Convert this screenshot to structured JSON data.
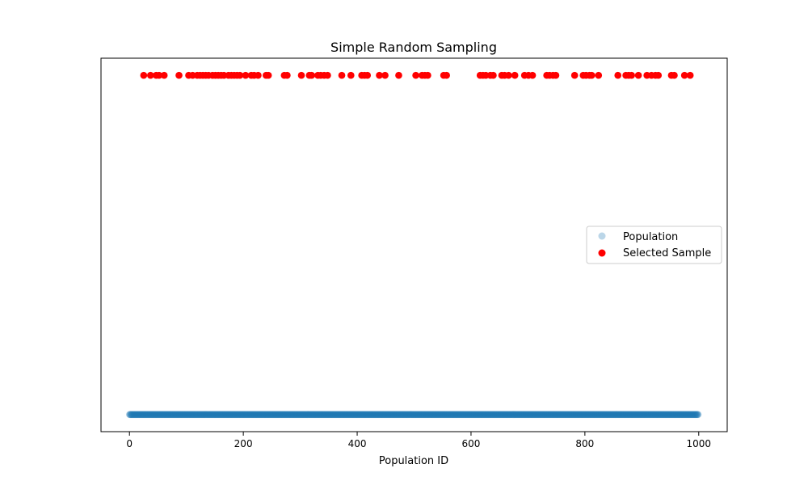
{
  "chart_data": {
    "type": "scatter",
    "title": "Simple Random Sampling",
    "xlabel": "Population ID",
    "ylabel": "",
    "xlim": [
      -50,
      1050
    ],
    "ylim": [
      0,
      1.09
    ],
    "xticks": [
      0,
      200,
      400,
      600,
      800,
      1000
    ],
    "xtick_labels": [
      "0",
      "200",
      "400",
      "600",
      "800",
      "1000"
    ],
    "yticks_visible": false,
    "grid": false,
    "legend_position": "center-right",
    "series": [
      {
        "name": "Population",
        "color": "#1f77b4",
        "alpha": 0.3,
        "y": 0.05,
        "x_range": [
          0,
          999
        ],
        "count": 1000
      },
      {
        "name": "Selected Sample",
        "color": "#ff0000",
        "alpha": 1,
        "y": 1.04,
        "x": [
          25,
          37,
          47,
          52,
          61,
          87,
          104,
          111,
          119,
          124,
          129,
          134,
          139,
          146,
          151,
          156,
          161,
          166,
          174,
          179,
          184,
          189,
          194,
          204,
          214,
          219,
          226,
          240,
          244,
          272,
          277,
          302,
          316,
          320,
          331,
          336,
          342,
          348,
          373,
          389,
          408,
          413,
          418,
          439,
          449,
          473,
          503,
          514,
          519,
          524,
          552,
          557,
          616,
          621,
          626,
          634,
          639,
          654,
          659,
          666,
          677,
          694,
          701,
          708,
          733,
          738,
          744,
          749,
          782,
          797,
          802,
          808,
          812,
          824,
          858,
          872,
          877,
          882,
          894,
          909,
          917,
          924,
          929,
          952,
          957,
          975,
          985
        ]
      }
    ]
  }
}
